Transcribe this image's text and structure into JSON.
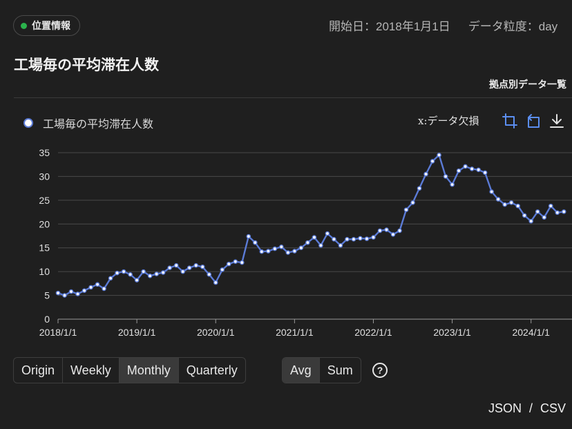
{
  "header": {
    "badge": "位置情報",
    "start_date": "開始日：2018年1月1日",
    "granularity": "データ粒度：day",
    "title": "工場毎の平均滞在人数",
    "side_link": "拠点別データ一覧"
  },
  "toolbar": {
    "missing_label": "x:データ欠損",
    "icons": [
      "crop-icon",
      "rotate-icon",
      "download-icon"
    ]
  },
  "controls": {
    "period_buttons": [
      "Origin",
      "Weekly",
      "Monthly",
      "Quarterly"
    ],
    "active_period": "Monthly",
    "agg_buttons": [
      "Avg",
      "Sum"
    ],
    "active_agg": "Avg",
    "help_label": "?"
  },
  "export": {
    "json": "JSON",
    "sep": "/",
    "csv": "CSV"
  },
  "colors": {
    "series": "#5b7bd6",
    "status_dot": "#2bb24c",
    "background": "#1f1f1f"
  },
  "chart_data": {
    "type": "line",
    "title": "",
    "xlabel": "",
    "ylabel": "",
    "ylim": [
      0,
      35
    ],
    "yticks": [
      0,
      5,
      10,
      15,
      20,
      25,
      30,
      35
    ],
    "xtick_labels": [
      "2018/1/1",
      "2019/1/1",
      "2020/1/1",
      "2021/1/1",
      "2022/1/1",
      "2023/1/1",
      "2024/1/1"
    ],
    "grid": true,
    "legend": "top-left",
    "x": [
      "2018-01",
      "2018-02",
      "2018-03",
      "2018-04",
      "2018-05",
      "2018-06",
      "2018-07",
      "2018-08",
      "2018-09",
      "2018-10",
      "2018-11",
      "2018-12",
      "2019-01",
      "2019-02",
      "2019-03",
      "2019-04",
      "2019-05",
      "2019-06",
      "2019-07",
      "2019-08",
      "2019-09",
      "2019-10",
      "2019-11",
      "2019-12",
      "2020-01",
      "2020-02",
      "2020-03",
      "2020-04",
      "2020-05",
      "2020-06",
      "2020-07",
      "2020-08",
      "2020-09",
      "2020-10",
      "2020-11",
      "2020-12",
      "2021-01",
      "2021-02",
      "2021-03",
      "2021-04",
      "2021-05",
      "2021-06",
      "2021-07",
      "2021-08",
      "2021-09",
      "2021-10",
      "2021-11",
      "2021-12",
      "2022-01",
      "2022-02",
      "2022-03",
      "2022-04",
      "2022-05",
      "2022-06",
      "2022-07",
      "2022-08",
      "2022-09",
      "2022-10",
      "2022-11",
      "2022-12",
      "2023-01",
      "2023-02",
      "2023-03",
      "2023-04",
      "2023-05",
      "2023-06",
      "2023-07",
      "2023-08",
      "2023-09",
      "2023-10",
      "2023-11",
      "2023-12",
      "2024-01",
      "2024-02",
      "2024-03",
      "2024-04",
      "2024-05",
      "2024-06"
    ],
    "series": [
      {
        "name": "工場毎の平均滞在人数",
        "values": [
          5.5,
          5.0,
          5.8,
          5.3,
          6.0,
          6.7,
          7.3,
          6.4,
          8.6,
          9.7,
          10.0,
          9.4,
          8.2,
          10.0,
          9.1,
          9.5,
          9.8,
          10.8,
          11.3,
          10.0,
          10.8,
          11.3,
          11.0,
          9.4,
          7.7,
          10.4,
          11.6,
          12.1,
          11.9,
          17.4,
          16.1,
          14.2,
          14.3,
          14.8,
          15.2,
          14.0,
          14.3,
          15.0,
          16.1,
          17.2,
          15.5,
          18.0,
          16.8,
          15.5,
          16.8,
          16.8,
          17.0,
          16.9,
          17.2,
          18.6,
          18.8,
          17.8,
          18.6,
          23.0,
          24.5,
          27.5,
          30.5,
          33.2,
          34.5,
          30.0,
          28.3,
          31.2,
          32.1,
          31.6,
          31.4,
          30.8,
          26.8,
          25.2,
          24.1,
          24.5,
          23.8,
          21.8,
          20.6,
          22.6,
          21.4,
          23.8,
          22.4,
          22.6
        ]
      }
    ]
  }
}
